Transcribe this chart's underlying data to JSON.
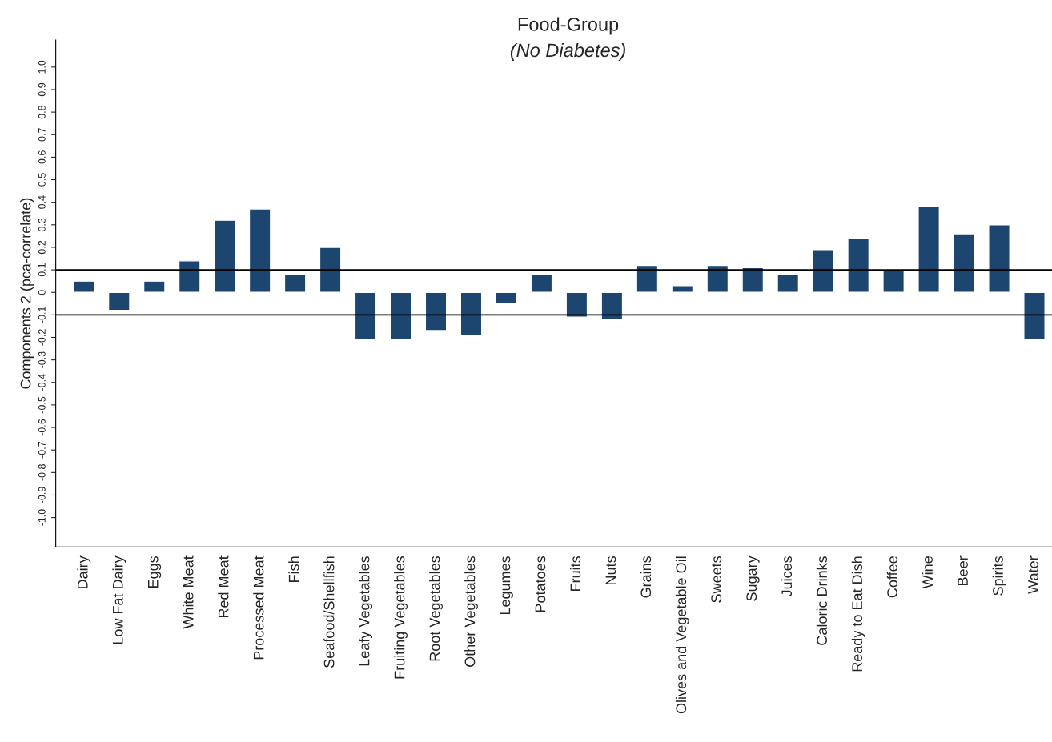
{
  "chart_data": {
    "type": "bar",
    "title": "Food-Group",
    "subtitle": "(No Diabetes)",
    "ylabel": "Components 2 (pca-correlate)",
    "categories": [
      "Dairy",
      "Low Fat Dairy",
      "Eggs",
      "White Meat",
      "Red Meat",
      "Processed Meat",
      "Fish",
      "Seafood/Shellfish",
      "Leafy Vegetables",
      "Fruiting Vegetables",
      "Root Vegetables",
      "Other Vegetables",
      "Legumes",
      "Potatoes",
      "Fruits",
      "Nuts",
      "Grains",
      "Olives and Vegetable Oil",
      "Sweets",
      "Sugary",
      "Juices",
      "Caloric Drinks",
      "Ready to Eat Dish",
      "Coffee",
      "Wine",
      "Beer",
      "Spirits",
      "Water"
    ],
    "values": [
      0.05,
      -0.08,
      0.05,
      0.14,
      0.32,
      0.37,
      0.08,
      0.2,
      -0.21,
      -0.21,
      -0.17,
      -0.19,
      -0.05,
      0.08,
      -0.11,
      -0.12,
      0.12,
      0.03,
      0.12,
      0.11,
      0.08,
      0.19,
      0.24,
      0.1,
      0.38,
      0.26,
      0.3,
      -0.21
    ],
    "color": "#1c4670",
    "ylim": [
      -1.13,
      1.12
    ],
    "yticks": [
      {
        "value": -1,
        "label": "-1.0"
      },
      -0.9,
      -0.8,
      -0.7,
      -0.6,
      -0.5,
      -0.4,
      -0.3,
      -0.2,
      -0.1,
      0,
      0.1,
      0.2,
      0.3,
      0.4,
      0.5,
      0.6,
      0.7,
      0.8,
      0.9,
      {
        "value": 1,
        "label": "1.0"
      }
    ],
    "ref_lines": [
      {
        "axis": "y",
        "value": 0.1,
        "color": "#000000"
      },
      {
        "axis": "y",
        "value": -0.1,
        "color": "#000000"
      }
    ],
    "grid": false,
    "legend": false
  }
}
